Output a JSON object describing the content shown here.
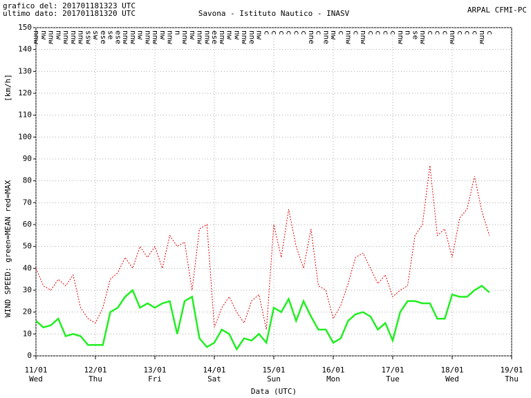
{
  "chart_data": {
    "type": "line",
    "header_left": [
      "grafico del: 201701181323 UTC",
      "ultimo dato: 201701181320 UTC"
    ],
    "title": "Savona - Istituto Nautico - INASV",
    "header_right": "ARPAL CFMI-PC",
    "ylabel_unit": "[km/h]",
    "ylabel": "WIND SPEED: green=MEAN  red=MAX",
    "xlabel": "Data (UTC)",
    "xlim": [
      0,
      8
    ],
    "xticks": [
      {
        "value": 0,
        "label": "11/01"
      },
      {
        "value": 1,
        "label": "12/01"
      },
      {
        "value": 2,
        "label": "13/01"
      },
      {
        "value": 3,
        "label": "14/01"
      },
      {
        "value": 4,
        "label": "15/01"
      },
      {
        "value": 5,
        "label": "16/01"
      },
      {
        "value": 6,
        "label": "17/01"
      },
      {
        "value": 7,
        "label": "18/01"
      },
      {
        "value": 8,
        "label": "19/01"
      }
    ],
    "xtick_days": [
      "Wed",
      "Thu",
      "Fri",
      "Sat",
      "Sun",
      "Mon",
      "Tue",
      "Wed",
      "Thu"
    ],
    "ylim": [
      0,
      150
    ],
    "yticks": [
      0,
      10,
      20,
      30,
      40,
      50,
      60,
      70,
      80,
      90,
      100,
      110,
      120,
      130,
      140,
      150
    ],
    "grid": true,
    "x": [
      0,
      0.125,
      0.25,
      0.375,
      0.5,
      0.625,
      0.75,
      0.875,
      1,
      1.125,
      1.25,
      1.375,
      1.5,
      1.625,
      1.75,
      1.875,
      2,
      2.125,
      2.25,
      2.375,
      2.5,
      2.625,
      2.75,
      2.875,
      3,
      3.125,
      3.25,
      3.375,
      3.5,
      3.625,
      3.75,
      3.875,
      4,
      4.125,
      4.25,
      4.375,
      4.5,
      4.625,
      4.75,
      4.875,
      5,
      5.125,
      5.25,
      5.375,
      5.5,
      5.625,
      5.75,
      5.875,
      6,
      6.125,
      6.25,
      6.375,
      6.5,
      6.625,
      6.75,
      6.875,
      7,
      7.125,
      7.25,
      7.375,
      7.5,
      7.625
    ],
    "directions": [
      "nnw",
      "nw",
      "nnw",
      "nw",
      "nnw",
      "nnw",
      "nnw",
      "ssw",
      "sw",
      "ese",
      "se",
      "ese",
      "nnw",
      "nnw",
      "nw",
      "nnw",
      "nnw",
      "nw",
      "nnw",
      "n",
      "nnw",
      "nw",
      "nnw",
      "nnw",
      "ese",
      "nnw",
      "nw",
      "nw",
      "nnw",
      "nne",
      "nw",
      "c",
      "c",
      "c",
      "c",
      "c",
      "c",
      "nne",
      "c",
      "nne",
      "nw",
      "c",
      "nnw",
      "c",
      "nnw",
      "c",
      "c",
      "c",
      "c",
      "nnw",
      "n",
      "se",
      "nnw",
      "c",
      "c",
      "c",
      "nnw",
      "c",
      "c",
      "c",
      "nnw",
      "c"
    ],
    "series": [
      {
        "name": "MAX",
        "color": "#e00000",
        "dash": true,
        "values": [
          40,
          32,
          30,
          35,
          32,
          37,
          22,
          17,
          15,
          22,
          35,
          38,
          45,
          40,
          50,
          45,
          50,
          40,
          55,
          50,
          52,
          30,
          58,
          60,
          13,
          22,
          27,
          20,
          15,
          25,
          28,
          12,
          60,
          45,
          67,
          50,
          40,
          58,
          32,
          30,
          17,
          23,
          33,
          45,
          47,
          40,
          33,
          37,
          27,
          30,
          32,
          55,
          60,
          87,
          55,
          58,
          45,
          63,
          67,
          82,
          66,
          55
        ]
      },
      {
        "name": "MEAN",
        "color": "#22ee22",
        "dash": false,
        "values": [
          16,
          13,
          14,
          17,
          9,
          10,
          9,
          5,
          5,
          5,
          20,
          22,
          27,
          30,
          22,
          24,
          22,
          24,
          25,
          10,
          25,
          27,
          8,
          4,
          6,
          12,
          10,
          3,
          8,
          7,
          10,
          6,
          22,
          20,
          26,
          16,
          25,
          18,
          12,
          12,
          6,
          8,
          16,
          19,
          20,
          18,
          12,
          15,
          7,
          20,
          25,
          25,
          24,
          24,
          17,
          17,
          28,
          27,
          27,
          30,
          32,
          29
        ]
      }
    ]
  }
}
